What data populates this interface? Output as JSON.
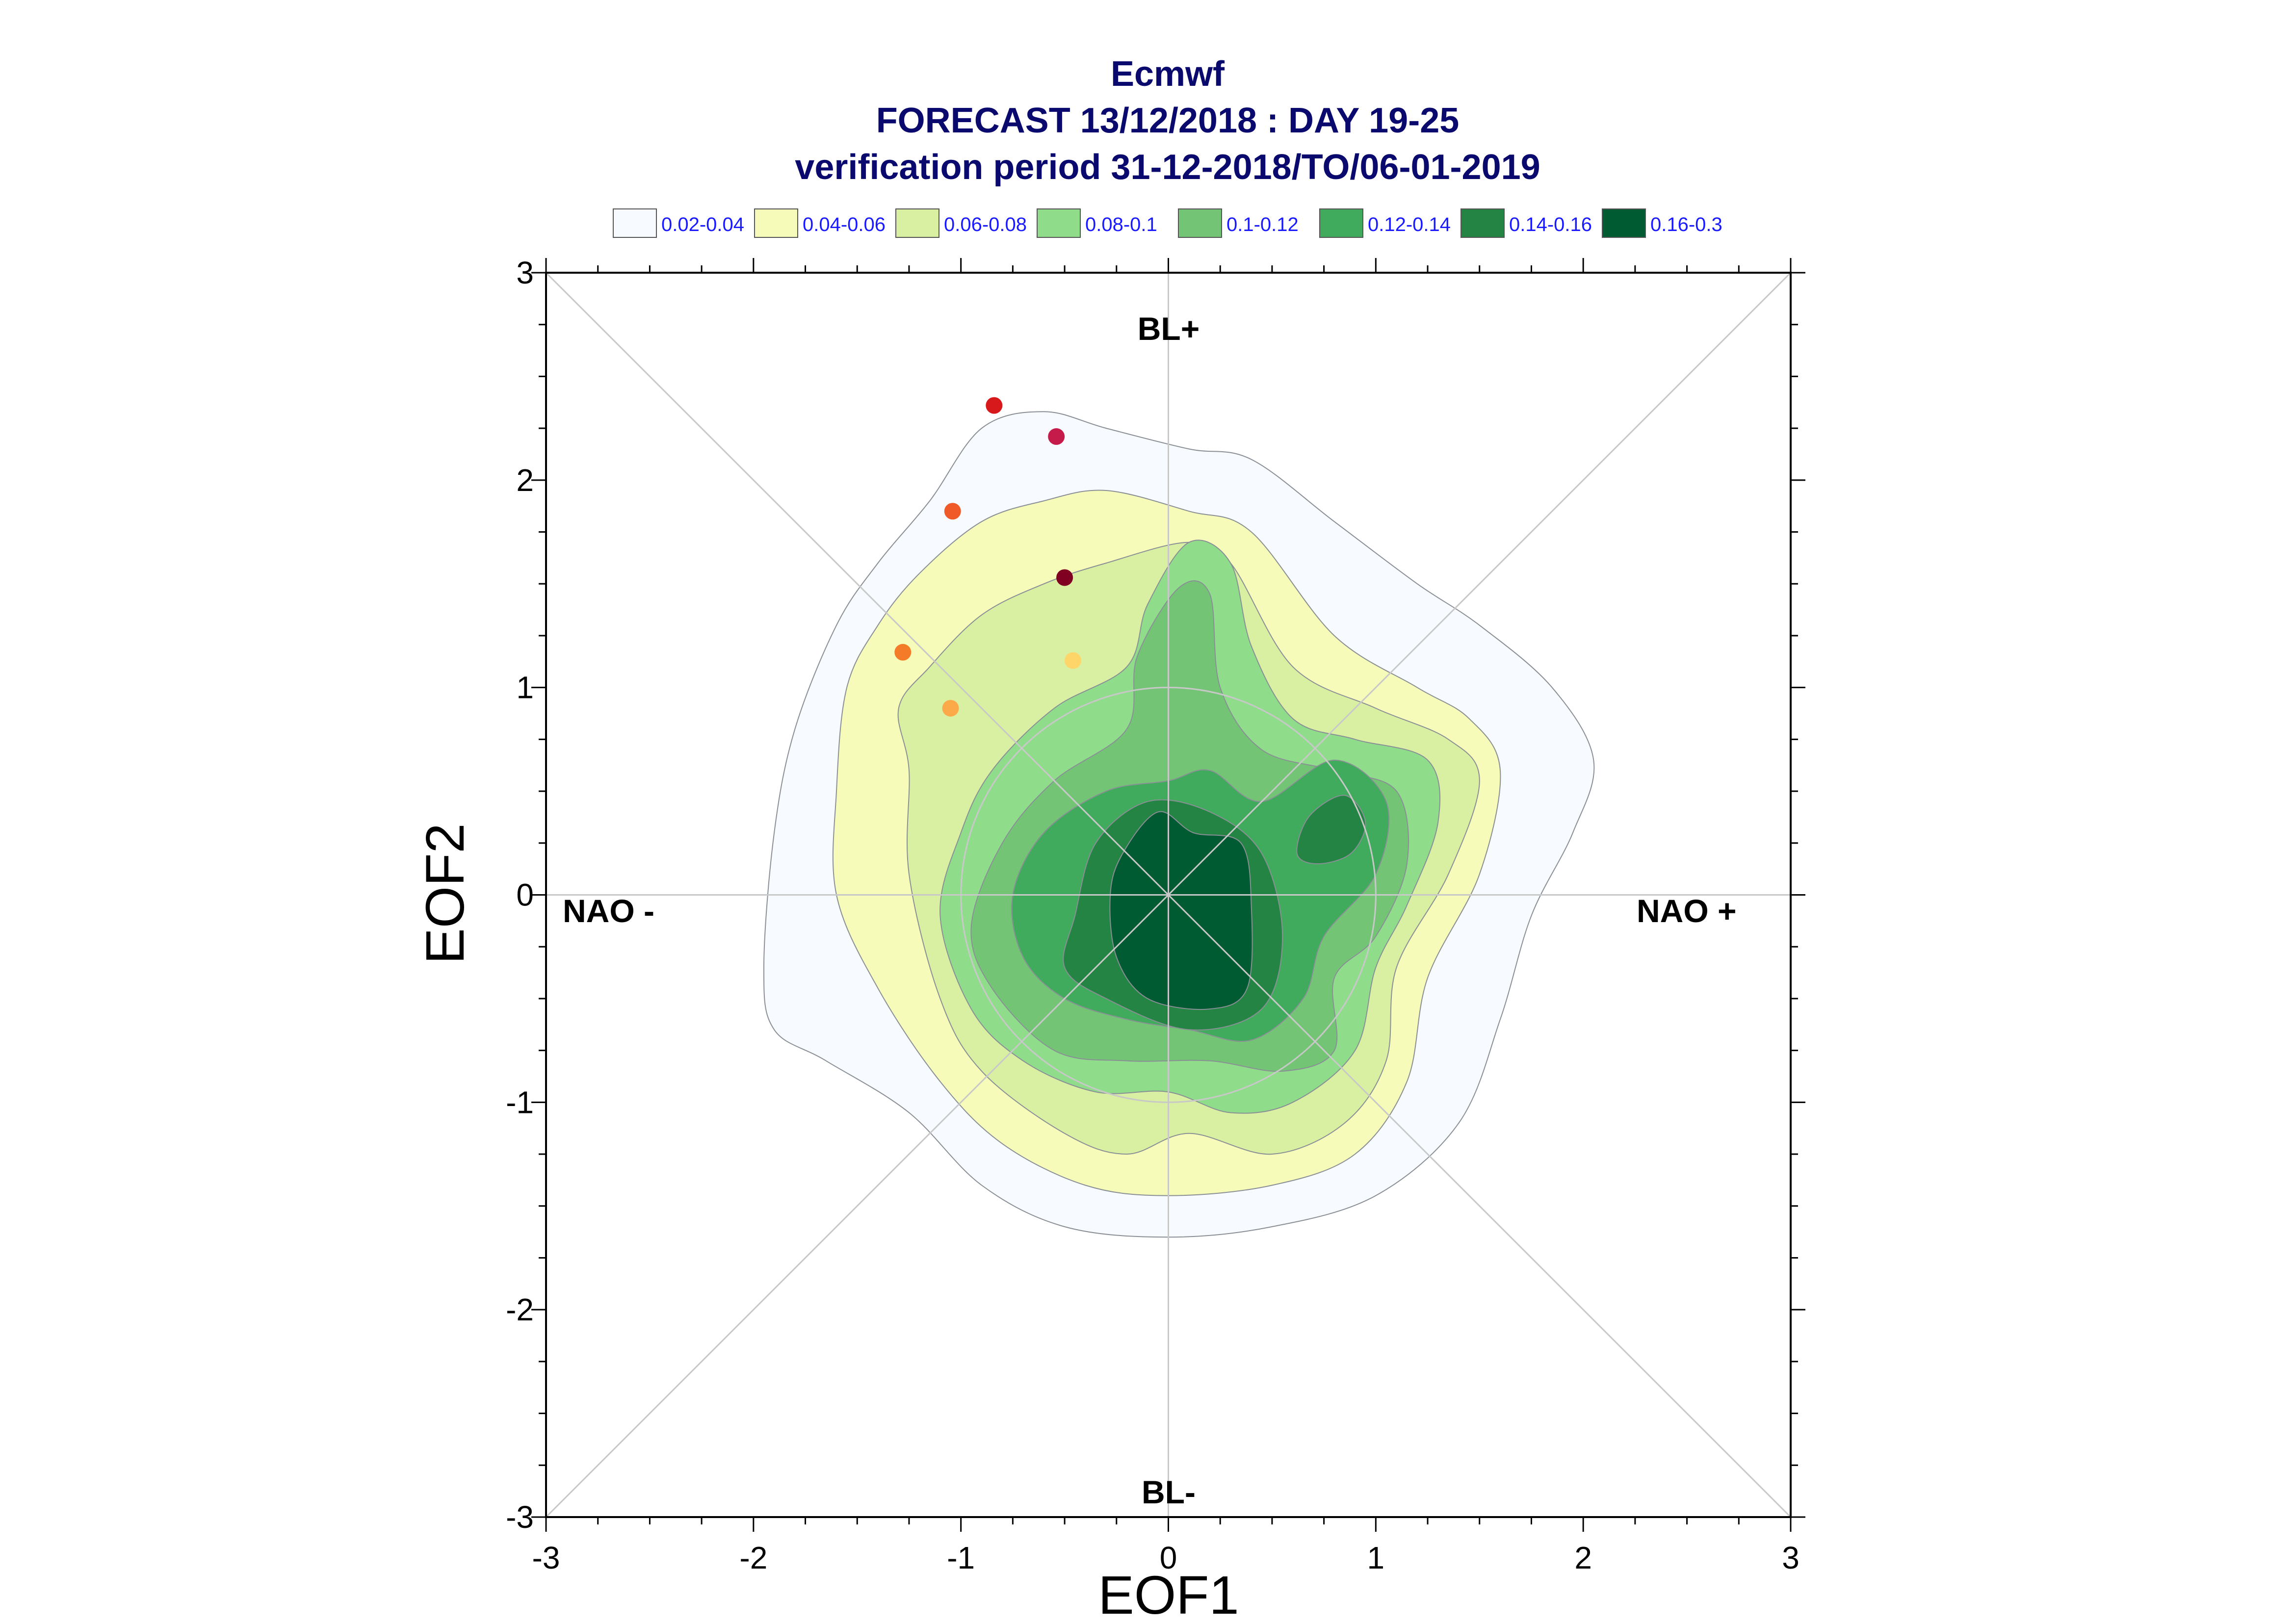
{
  "chart_data": {
    "type": "contour",
    "title": "Ecmwf",
    "subtitle": "FORECAST 13/12/2018 : DAY 19-25",
    "subtitle2": "verification period 31-12-2018/TO/06-01-2019",
    "xlabel": "EOF1",
    "ylabel": "EOF2",
    "xlim": [
      -3,
      3
    ],
    "ylim": [
      -3,
      3
    ],
    "x_ticks": [
      "-3",
      "-2",
      "-1",
      "0",
      "1",
      "2",
      "3"
    ],
    "y_ticks": [
      "-3",
      "-2",
      "-1",
      "0",
      "1",
      "2",
      "3"
    ],
    "regime_labels": {
      "top": "BL+",
      "bottom": "BL-",
      "left": "NAO -",
      "right": "NAO +"
    },
    "legend": [
      {
        "label": "0.02-0.04",
        "color": "#f7fbff"
      },
      {
        "label": "0.04-0.06",
        "color": "#f7fbb9"
      },
      {
        "label": "0.06-0.08",
        "color": "#d9f0a3"
      },
      {
        "label": "0.08-0.1",
        "color": "#8fdc8b"
      },
      {
        "label": "0.1-0.12",
        "color": "#74c476"
      },
      {
        "label": "0.12-0.14",
        "color": "#41ab5d"
      },
      {
        "label": "0.14-0.16",
        "color": "#238443"
      },
      {
        "label": "0.16-0.3",
        "color": "#005a32"
      }
    ],
    "points": [
      {
        "x": -0.84,
        "y": 2.36,
        "color": "#d7191c"
      },
      {
        "x": -0.54,
        "y": 2.21,
        "color": "#c51b4a"
      },
      {
        "x": -1.04,
        "y": 1.85,
        "color": "#f05a28"
      },
      {
        "x": -0.5,
        "y": 1.53,
        "color": "#7f0020"
      },
      {
        "x": -1.28,
        "y": 1.17,
        "color": "#f47b28"
      },
      {
        "x": -0.46,
        "y": 1.13,
        "color": "#fdd568"
      },
      {
        "x": -1.05,
        "y": 0.9,
        "color": "#fca94a"
      }
    ],
    "contours": [
      {
        "level": "0.02-0.04",
        "color": "#f7fbff",
        "points": [
          [
            -1.95,
            -0.35
          ],
          [
            -1.9,
            0.3
          ],
          [
            -1.8,
            0.8
          ],
          [
            -1.6,
            1.3
          ],
          [
            -1.4,
            1.6
          ],
          [
            -1.15,
            1.9
          ],
          [
            -0.9,
            2.25
          ],
          [
            -0.6,
            2.33
          ],
          [
            -0.3,
            2.25
          ],
          [
            0.1,
            2.15
          ],
          [
            0.4,
            2.1
          ],
          [
            0.8,
            1.8
          ],
          [
            1.2,
            1.5
          ],
          [
            1.5,
            1.3
          ],
          [
            1.85,
            1.0
          ],
          [
            2.05,
            0.65
          ],
          [
            1.95,
            0.3
          ],
          [
            1.75,
            -0.1
          ],
          [
            1.6,
            -0.6
          ],
          [
            1.4,
            -1.1
          ],
          [
            1.0,
            -1.45
          ],
          [
            0.5,
            -1.6
          ],
          [
            0.0,
            -1.65
          ],
          [
            -0.5,
            -1.6
          ],
          [
            -0.9,
            -1.4
          ],
          [
            -1.25,
            -1.05
          ],
          [
            -1.65,
            -0.8
          ],
          [
            -1.9,
            -0.65
          ]
        ]
      },
      {
        "level": "0.04-0.06",
        "color": "#f7fbb9",
        "points": [
          [
            -1.6,
            0.0
          ],
          [
            -1.6,
            0.5
          ],
          [
            -1.55,
            1.0
          ],
          [
            -1.4,
            1.3
          ],
          [
            -1.2,
            1.55
          ],
          [
            -0.9,
            1.8
          ],
          [
            -0.6,
            1.9
          ],
          [
            -0.3,
            1.95
          ],
          [
            0.1,
            1.85
          ],
          [
            0.4,
            1.75
          ],
          [
            0.8,
            1.25
          ],
          [
            1.2,
            1.0
          ],
          [
            1.45,
            0.85
          ],
          [
            1.6,
            0.6
          ],
          [
            1.5,
            0.1
          ],
          [
            1.25,
            -0.4
          ],
          [
            1.15,
            -0.9
          ],
          [
            0.9,
            -1.25
          ],
          [
            0.5,
            -1.4
          ],
          [
            0.0,
            -1.45
          ],
          [
            -0.4,
            -1.4
          ],
          [
            -0.8,
            -1.2
          ],
          [
            -1.1,
            -0.9
          ],
          [
            -1.4,
            -0.45
          ]
        ]
      },
      {
        "level": "0.06-0.08",
        "color": "#d9f0a3",
        "points": [
          [
            -1.25,
            0.1
          ],
          [
            -1.25,
            0.6
          ],
          [
            -1.3,
            0.9
          ],
          [
            -1.15,
            1.1
          ],
          [
            -0.9,
            1.35
          ],
          [
            -0.6,
            1.5
          ],
          [
            -0.3,
            1.6
          ],
          [
            0.1,
            1.7
          ],
          [
            0.3,
            1.6
          ],
          [
            0.6,
            1.1
          ],
          [
            1.0,
            0.9
          ],
          [
            1.35,
            0.75
          ],
          [
            1.5,
            0.55
          ],
          [
            1.35,
            0.1
          ],
          [
            1.1,
            -0.35
          ],
          [
            1.05,
            -0.8
          ],
          [
            0.85,
            -1.1
          ],
          [
            0.5,
            -1.25
          ],
          [
            0.1,
            -1.15
          ],
          [
            -0.2,
            -1.25
          ],
          [
            -0.5,
            -1.15
          ],
          [
            -0.9,
            -0.85
          ],
          [
            -1.1,
            -0.5
          ]
        ]
      },
      {
        "level": "0.08-0.1",
        "color": "#8fdc8b",
        "points": [
          [
            -1.1,
            -0.1
          ],
          [
            -1.0,
            0.3
          ],
          [
            -0.85,
            0.6
          ],
          [
            -0.55,
            0.9
          ],
          [
            -0.2,
            1.1
          ],
          [
            -0.1,
            1.4
          ],
          [
            0.1,
            1.7
          ],
          [
            0.3,
            1.6
          ],
          [
            0.4,
            1.2
          ],
          [
            0.6,
            0.85
          ],
          [
            0.9,
            0.75
          ],
          [
            1.25,
            0.65
          ],
          [
            1.3,
            0.35
          ],
          [
            1.15,
            -0.05
          ],
          [
            1.0,
            -0.35
          ],
          [
            0.9,
            -0.75
          ],
          [
            0.6,
            -1.0
          ],
          [
            0.3,
            -1.05
          ],
          [
            0.0,
            -0.95
          ],
          [
            -0.35,
            -0.95
          ],
          [
            -0.7,
            -0.8
          ],
          [
            -0.95,
            -0.55
          ]
        ]
      },
      {
        "level": "0.1-0.12",
        "color": "#74c476",
        "points": [
          [
            -0.95,
            -0.15
          ],
          [
            -0.8,
            0.25
          ],
          [
            -0.55,
            0.55
          ],
          [
            -0.2,
            0.8
          ],
          [
            -0.15,
            1.15
          ],
          [
            0.05,
            1.48
          ],
          [
            0.2,
            1.45
          ],
          [
            0.25,
            1.0
          ],
          [
            0.45,
            0.7
          ],
          [
            0.8,
            0.6
          ],
          [
            1.1,
            0.5
          ],
          [
            1.15,
            0.15
          ],
          [
            1.0,
            -0.2
          ],
          [
            0.8,
            -0.4
          ],
          [
            0.8,
            -0.75
          ],
          [
            0.55,
            -0.85
          ],
          [
            0.2,
            -0.8
          ],
          [
            -0.2,
            -0.8
          ],
          [
            -0.55,
            -0.75
          ],
          [
            -0.85,
            -0.45
          ]
        ]
      },
      {
        "level": "0.12-0.14",
        "color": "#41ab5d",
        "points": [
          [
            -0.75,
            0.0
          ],
          [
            -0.6,
            0.3
          ],
          [
            -0.3,
            0.5
          ],
          [
            0.0,
            0.55
          ],
          [
            0.2,
            0.6
          ],
          [
            0.45,
            0.45
          ],
          [
            0.8,
            0.65
          ],
          [
            1.05,
            0.45
          ],
          [
            1.0,
            0.1
          ],
          [
            0.75,
            -0.2
          ],
          [
            0.65,
            -0.5
          ],
          [
            0.4,
            -0.7
          ],
          [
            0.1,
            -0.65
          ],
          [
            -0.2,
            -0.6
          ],
          [
            -0.5,
            -0.5
          ],
          [
            -0.7,
            -0.3
          ]
        ]
      },
      {
        "level": "0.14-0.16",
        "color": "#238443",
        "points": [
          [
            -0.45,
            -0.1
          ],
          [
            -0.35,
            0.25
          ],
          [
            -0.1,
            0.45
          ],
          [
            0.2,
            0.4
          ],
          [
            0.45,
            0.2
          ],
          [
            0.55,
            -0.2
          ],
          [
            0.45,
            -0.55
          ],
          [
            0.1,
            -0.65
          ],
          [
            -0.3,
            -0.5
          ],
          [
            -0.5,
            -0.35
          ]
        ]
      },
      {
        "level": "0.14-0.16",
        "color": "#238443",
        "points": [
          [
            0.62,
            0.2
          ],
          [
            0.68,
            0.38
          ],
          [
            0.85,
            0.48
          ],
          [
            0.95,
            0.35
          ],
          [
            0.88,
            0.2
          ],
          [
            0.72,
            0.15
          ]
        ]
      },
      {
        "level": "0.16-0.3",
        "color": "#005a32",
        "points": [
          [
            -0.28,
            0.0
          ],
          [
            -0.22,
            0.2
          ],
          [
            -0.05,
            0.4
          ],
          [
            0.12,
            0.3
          ],
          [
            0.35,
            0.25
          ],
          [
            0.4,
            -0.05
          ],
          [
            0.38,
            -0.45
          ],
          [
            0.2,
            -0.55
          ],
          [
            -0.1,
            -0.5
          ],
          [
            -0.25,
            -0.3
          ]
        ]
      }
    ]
  }
}
